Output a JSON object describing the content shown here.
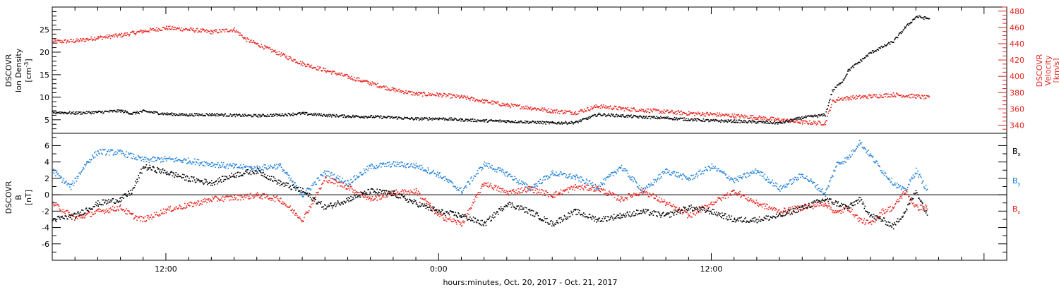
{
  "chart_data": [
    {
      "type": "scatter",
      "panel": "solar-wind",
      "ylabel_left": [
        "DSCOVR",
        "Ion Density",
        "[cm",
        "-3",
        "]"
      ],
      "ylabel_right": [
        "DSCOVR",
        "Velocity",
        "[km/s]"
      ],
      "ylim_left": [
        2,
        30
      ],
      "yticks_left": [
        5,
        10,
        15,
        20,
        25
      ],
      "ytick_labels_left": [
        "5",
        "10",
        "15",
        "20",
        "25"
      ],
      "ylim_right": [
        330,
        485
      ],
      "yticks_right": [
        340,
        360,
        380,
        400,
        420,
        440,
        460,
        480
      ],
      "ytick_labels_right": [
        "340",
        "360",
        "380",
        "400",
        "420",
        "440",
        "460",
        "480"
      ],
      "colors": {
        "density": "#000000",
        "velocity": "#e8241e"
      },
      "series": [
        {
          "axis": "left",
          "color": "#000000",
          "x": [
            0,
            1,
            2,
            3,
            3.5,
            4,
            5,
            6,
            7,
            8,
            9,
            10,
            11,
            12,
            13,
            14,
            15,
            16,
            17,
            18,
            19,
            20,
            21,
            22,
            23,
            24,
            25,
            26,
            27,
            28,
            29,
            30,
            31,
            32,
            33,
            34,
            34.3,
            34.8,
            35,
            36,
            37,
            37.5,
            38,
            38.6
          ],
          "values": [
            6.8,
            6.6,
            6.8,
            7.1,
            6.5,
            7.0,
            6.4,
            6.2,
            6.3,
            6.1,
            6.0,
            6.2,
            6.5,
            6.1,
            5.9,
            5.8,
            5.6,
            5.3,
            5.4,
            5.1,
            4.9,
            4.8,
            4.6,
            4.4,
            4.5,
            6.3,
            6.0,
            5.7,
            5.5,
            5.2,
            4.9,
            4.8,
            4.6,
            4.4,
            5.6,
            6.2,
            11.5,
            14.0,
            16.0,
            20.0,
            22.5,
            25.5,
            28.0,
            27.5
          ]
        },
        {
          "axis": "right",
          "color": "#e8241e",
          "x": [
            0,
            1,
            2,
            3,
            4,
            5,
            6,
            7,
            8,
            8.5,
            9,
            10,
            11,
            12,
            13,
            14,
            15,
            16,
            17,
            18,
            19,
            20,
            21,
            22,
            23,
            24,
            25,
            26,
            27,
            28,
            29,
            30,
            31,
            32,
            33,
            34,
            34.3,
            34.6,
            35,
            36,
            37,
            38,
            38.6
          ],
          "values": [
            443,
            444,
            448,
            451,
            456,
            460,
            458,
            455,
            458,
            446,
            440,
            428,
            416,
            408,
            400,
            392,
            384,
            379,
            378,
            375,
            370,
            365,
            362,
            358,
            356,
            364,
            361,
            359,
            357,
            355,
            354,
            352,
            350,
            347,
            344,
            343,
            369,
            373,
            374,
            376,
            378,
            376,
            374
          ]
        }
      ]
    },
    {
      "type": "scatter",
      "panel": "magnetic-field",
      "ylabel_left": [
        "DSCOVR",
        "B",
        "[nT]"
      ],
      "ylim": [
        -8,
        7.5
      ],
      "yticks": [
        -6,
        -4,
        -2,
        0,
        2,
        4,
        6
      ],
      "ytick_labels": [
        "-6",
        "-4",
        "-2",
        "0",
        "2",
        "4",
        "6"
      ],
      "zero_line": true,
      "series": [
        {
          "name": "Bx",
          "label_main": "B",
          "label_sub": "x",
          "color": "#000000",
          "x": [
            0,
            1,
            2,
            3,
            3.5,
            4,
            5,
            6,
            7,
            8,
            9,
            10,
            11,
            12,
            13,
            14,
            15,
            16,
            17,
            18,
            19,
            20,
            21,
            22,
            23,
            24,
            25,
            26,
            27,
            28,
            29,
            30,
            31,
            32,
            33,
            34,
            34.5,
            35,
            35.5,
            36,
            36.5,
            37,
            37.5,
            38,
            38.5
          ],
          "values": [
            -3.0,
            -2.5,
            -1.0,
            -0.5,
            0.5,
            3.5,
            2.8,
            2.0,
            1.5,
            2.5,
            3.0,
            1.5,
            0.5,
            -1.5,
            -0.5,
            0.5,
            0.2,
            -1.0,
            -2.0,
            -2.5,
            -3.5,
            -1.0,
            -2.0,
            -3.5,
            -2.0,
            -3.0,
            -2.5,
            -2.0,
            -2.5,
            -1.5,
            -2.0,
            -3.0,
            -3.0,
            -2.5,
            -1.5,
            -0.5,
            -1.0,
            -1.5,
            -0.5,
            -2.5,
            -3.0,
            -3.8,
            -2.0,
            0.5,
            -2.5
          ]
        },
        {
          "name": "By",
          "label_main": "B",
          "label_sub": "y",
          "color": "#1e7fd8",
          "x": [
            0,
            0.8,
            1.5,
            2,
            3,
            4,
            5,
            6,
            7,
            8,
            9,
            10,
            11,
            12,
            13,
            14,
            15,
            16,
            17,
            18,
            19,
            20,
            21,
            22,
            23,
            24,
            25,
            26,
            27,
            28,
            29,
            30,
            31,
            32,
            33,
            34,
            34.5,
            35,
            35.5,
            36,
            36.5,
            37,
            37.5,
            38,
            38.5
          ],
          "values": [
            3.0,
            1.0,
            4.0,
            5.3,
            5.2,
            4.3,
            4.4,
            4.2,
            3.8,
            3.5,
            3.3,
            3.6,
            0.0,
            2.8,
            1.5,
            3.5,
            3.8,
            3.6,
            2.5,
            0.5,
            3.8,
            2.6,
            0.8,
            2.7,
            2.2,
            1.0,
            3.5,
            0.5,
            3.0,
            2.0,
            3.5,
            1.8,
            3.0,
            0.8,
            2.5,
            0.2,
            3.8,
            4.5,
            6.5,
            4.8,
            3.0,
            1.5,
            0.5,
            3.0,
            0.5
          ]
        },
        {
          "name": "Bz",
          "label_main": "B",
          "label_sub": "z",
          "color": "#e8241e",
          "x": [
            0,
            1,
            2,
            3,
            3.5,
            4,
            5,
            6,
            7,
            8,
            9,
            10,
            11,
            12,
            13,
            14,
            15,
            16,
            17,
            18,
            19,
            20,
            21,
            22,
            23,
            24,
            25,
            26,
            27,
            28,
            29,
            30,
            31,
            32,
            33,
            34,
            34.5,
            35,
            35.5,
            36,
            36.5,
            37,
            37.5,
            38,
            38.5
          ],
          "values": [
            -1.0,
            -2.8,
            -2.0,
            -1.5,
            -2.5,
            -3.0,
            -1.8,
            -1.2,
            -0.5,
            -0.3,
            0.0,
            -0.5,
            -3.0,
            2.0,
            1.0,
            -0.5,
            0.3,
            0.5,
            -2.5,
            -3.5,
            1.5,
            0.3,
            0.8,
            0.0,
            1.0,
            0.8,
            -0.5,
            0.5,
            -1.0,
            -2.5,
            -1.0,
            0.5,
            -1.0,
            -2.0,
            -1.5,
            -1.0,
            -2.2,
            -1.5,
            -3.0,
            -3.5,
            -2.0,
            -1.5,
            0.5,
            -1.5,
            -1.5
          ]
        }
      ]
    }
  ],
  "x_axis": {
    "range_hours": [
      0,
      42
    ],
    "major_ticks": [
      5,
      17,
      29,
      41
    ],
    "minor_tick_step": 1,
    "labeled_ticks": [
      5,
      17,
      29
    ],
    "tick_labels": [
      "12:00",
      "0:00",
      "12:00"
    ],
    "xlabel": "hours:minutes, Oct. 20, 2017 - Oct. 21, 2017"
  }
}
